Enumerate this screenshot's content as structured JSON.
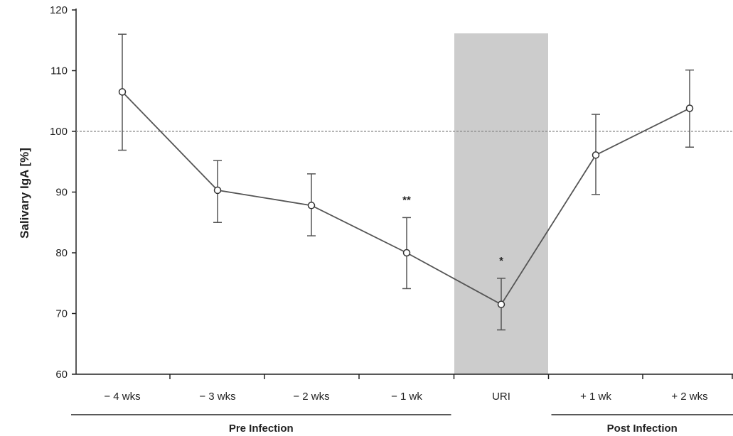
{
  "chart_data": {
    "type": "line",
    "title": "",
    "xlabel": "",
    "ylabel": "Salivary IgA [%]",
    "ylim": [
      60,
      120
    ],
    "yticks": [
      60,
      70,
      80,
      90,
      100,
      110,
      120
    ],
    "reference_line": 100,
    "categories": [
      "− 4 wks",
      "− 3 wks",
      "− 2 wks",
      "− 1 wk",
      "URI",
      "+ 1 wk",
      "+ 2 wks"
    ],
    "series": [
      {
        "values": [
          106.5,
          90.3,
          87.8,
          80.0,
          71.5,
          96.1,
          103.8
        ],
        "error_upper": [
          116.0,
          95.2,
          93.0,
          85.8,
          75.8,
          102.8,
          110.1
        ],
        "error_lower": [
          96.9,
          85.0,
          82.8,
          74.1,
          67.3,
          89.6,
          97.4
        ]
      }
    ],
    "highlight_band": {
      "category": "URI",
      "color": "#cccccc"
    },
    "annotations": [
      {
        "category": "− 1 wk",
        "text": "**"
      },
      {
        "category": "URI",
        "text": "*"
      }
    ],
    "groups": [
      {
        "label": "Pre Infection",
        "from": "− 4 wks",
        "to": "− 1 wk"
      },
      {
        "label": "Post Infection",
        "from": "+ 1 wk",
        "to": "+ 2 wks"
      }
    ],
    "grid": false,
    "legend": "none"
  },
  "colors": {
    "line": "#555555",
    "marker_fill": "#ffffff",
    "band": "#cccccc",
    "axis": "#222222",
    "reference": "#888888"
  }
}
